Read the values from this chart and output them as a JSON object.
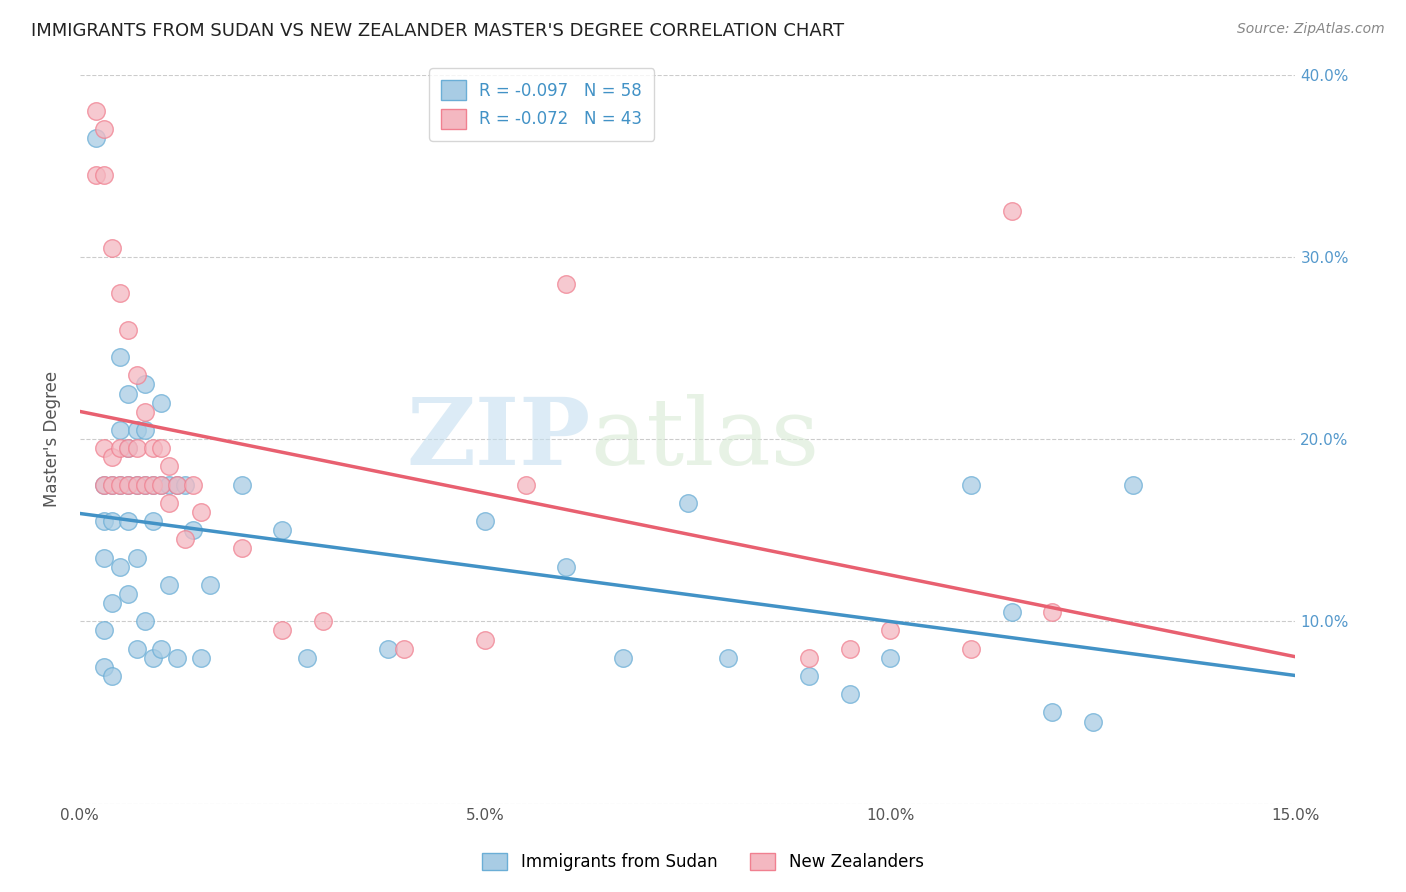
{
  "title": "IMMIGRANTS FROM SUDAN VS NEW ZEALANDER MASTER'S DEGREE CORRELATION CHART",
  "source": "Source: ZipAtlas.com",
  "ylabel": "Master's Degree",
  "xlim": [
    0.0,
    0.15
  ],
  "ylim": [
    0.0,
    0.4
  ],
  "legend_r1": "R = -0.097   N = 58",
  "legend_r2": "R = -0.072   N = 43",
  "legend_label1": "Immigrants from Sudan",
  "legend_label2": "New Zealanders",
  "blue_color": "#a8cce4",
  "pink_color": "#f4b8c1",
  "blue_edge_color": "#6baed6",
  "pink_edge_color": "#f08090",
  "blue_line_color": "#4292c6",
  "pink_line_color": "#e86070",
  "tick_color_right": "#5599cc",
  "watermark_zip": "ZIP",
  "watermark_atlas": "atlas",
  "blue_scatter_x": [
    0.003,
    0.003,
    0.003,
    0.003,
    0.003,
    0.004,
    0.004,
    0.004,
    0.004,
    0.005,
    0.005,
    0.005,
    0.005,
    0.006,
    0.006,
    0.006,
    0.006,
    0.006,
    0.007,
    0.007,
    0.007,
    0.007,
    0.008,
    0.008,
    0.008,
    0.008,
    0.009,
    0.009,
    0.009,
    0.01,
    0.01,
    0.01,
    0.011,
    0.011,
    0.012,
    0.012,
    0.013,
    0.014,
    0.015,
    0.016,
    0.02,
    0.025,
    0.028,
    0.038,
    0.05,
    0.06,
    0.067,
    0.075,
    0.08,
    0.09,
    0.095,
    0.1,
    0.11,
    0.115,
    0.12,
    0.125,
    0.13,
    0.002
  ],
  "blue_scatter_y": [
    0.175,
    0.155,
    0.135,
    0.095,
    0.075,
    0.175,
    0.155,
    0.11,
    0.07,
    0.245,
    0.205,
    0.175,
    0.13,
    0.225,
    0.195,
    0.175,
    0.155,
    0.115,
    0.205,
    0.175,
    0.135,
    0.085,
    0.23,
    0.205,
    0.175,
    0.1,
    0.175,
    0.155,
    0.08,
    0.22,
    0.175,
    0.085,
    0.175,
    0.12,
    0.175,
    0.08,
    0.175,
    0.15,
    0.08,
    0.12,
    0.175,
    0.15,
    0.08,
    0.085,
    0.155,
    0.13,
    0.08,
    0.165,
    0.08,
    0.07,
    0.06,
    0.08,
    0.175,
    0.105,
    0.05,
    0.045,
    0.175,
    0.365
  ],
  "pink_scatter_x": [
    0.002,
    0.002,
    0.003,
    0.003,
    0.003,
    0.003,
    0.004,
    0.004,
    0.004,
    0.005,
    0.005,
    0.005,
    0.006,
    0.006,
    0.006,
    0.007,
    0.007,
    0.007,
    0.008,
    0.008,
    0.009,
    0.009,
    0.01,
    0.01,
    0.011,
    0.011,
    0.012,
    0.013,
    0.014,
    0.015,
    0.02,
    0.025,
    0.03,
    0.04,
    0.05,
    0.055,
    0.06,
    0.09,
    0.095,
    0.1,
    0.11,
    0.115,
    0.12
  ],
  "pink_scatter_y": [
    0.38,
    0.345,
    0.37,
    0.345,
    0.195,
    0.175,
    0.305,
    0.19,
    0.175,
    0.28,
    0.195,
    0.175,
    0.26,
    0.195,
    0.175,
    0.235,
    0.195,
    0.175,
    0.215,
    0.175,
    0.195,
    0.175,
    0.195,
    0.175,
    0.185,
    0.165,
    0.175,
    0.145,
    0.175,
    0.16,
    0.14,
    0.095,
    0.1,
    0.085,
    0.09,
    0.175,
    0.285,
    0.08,
    0.085,
    0.095,
    0.085,
    0.325,
    0.105
  ]
}
